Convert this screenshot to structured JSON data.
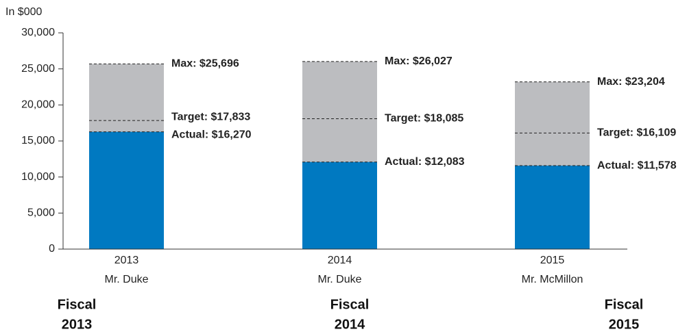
{
  "chart_data": {
    "type": "bar",
    "y_label": "In $000",
    "categories": [
      "2013",
      "2014",
      "2015"
    ],
    "category_sublabels": [
      "Mr. Duke",
      "Mr. Duke",
      "Mr. McMillon"
    ],
    "fiscal_labels": [
      [
        "Fiscal",
        "2013"
      ],
      [
        "Fiscal",
        "2014"
      ],
      [
        "Fiscal",
        "2015"
      ]
    ],
    "max": {
      "values": [
        25696,
        26027,
        23204
      ],
      "value_labels": [
        "Max: $25,696",
        "Max: $26,027",
        "Max: $23,204"
      ],
      "color": "#bcbdc0"
    },
    "target": {
      "values": [
        17833,
        18085,
        16109
      ],
      "value_labels": [
        "Target: $17,833",
        "Target: $18,085",
        "Target: $16,109"
      ]
    },
    "actual": {
      "values": [
        16270,
        12083,
        11578
      ],
      "value_labels": [
        "Actual: $16,270",
        "Actual: $12,083",
        "Actual: $11,578"
      ],
      "color": "#0079c1"
    },
    "ylim": [
      0,
      30000
    ],
    "yticks": [
      0,
      {
        "value": 5000,
        "label": "5,000"
      },
      {
        "value": 10000,
        "label": "10,000"
      },
      {
        "value": 15000,
        "label": "15,000"
      },
      {
        "value": 20000,
        "label": "20,000"
      },
      {
        "value": 25000,
        "label": "25,000"
      },
      {
        "value": 30000,
        "label": "30,000"
      }
    ]
  }
}
